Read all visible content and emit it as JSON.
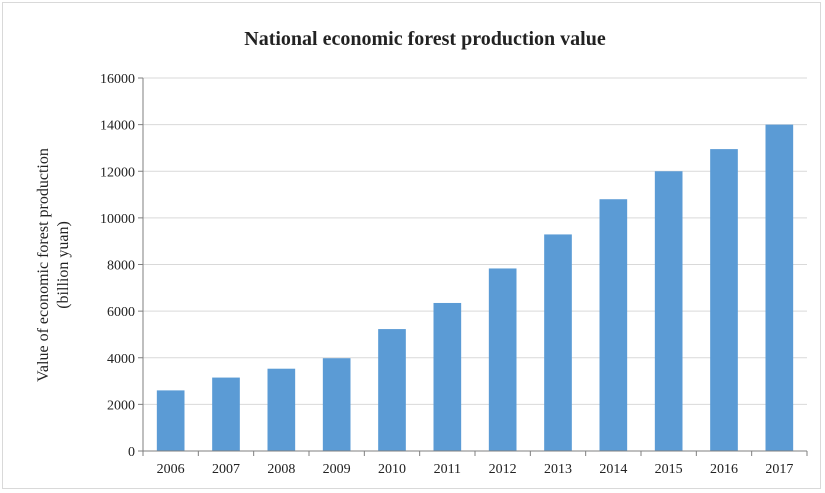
{
  "chart_data": {
    "type": "bar",
    "title": "National economic forest production value",
    "xlabel": "",
    "ylabel_lines": [
      "Value of economic forest production",
      "(billion yuan)"
    ],
    "categories": [
      "2006",
      "2007",
      "2008",
      "2009",
      "2010",
      "2011",
      "2012",
      "2013",
      "2014",
      "2015",
      "2016",
      "2017"
    ],
    "values": [
      2600,
      3150,
      3530,
      3980,
      5230,
      6350,
      7830,
      9290,
      10800,
      12000,
      12950,
      14000
    ],
    "ylim": [
      0,
      16000
    ],
    "yticks": [
      "0",
      "2000",
      "4000",
      "6000",
      "8000",
      "10000",
      "12000",
      "14000",
      "16000"
    ],
    "grid": true,
    "legend": "none",
    "bar_color": "#5b9bd5",
    "grid_color": "#d9d9d9"
  }
}
